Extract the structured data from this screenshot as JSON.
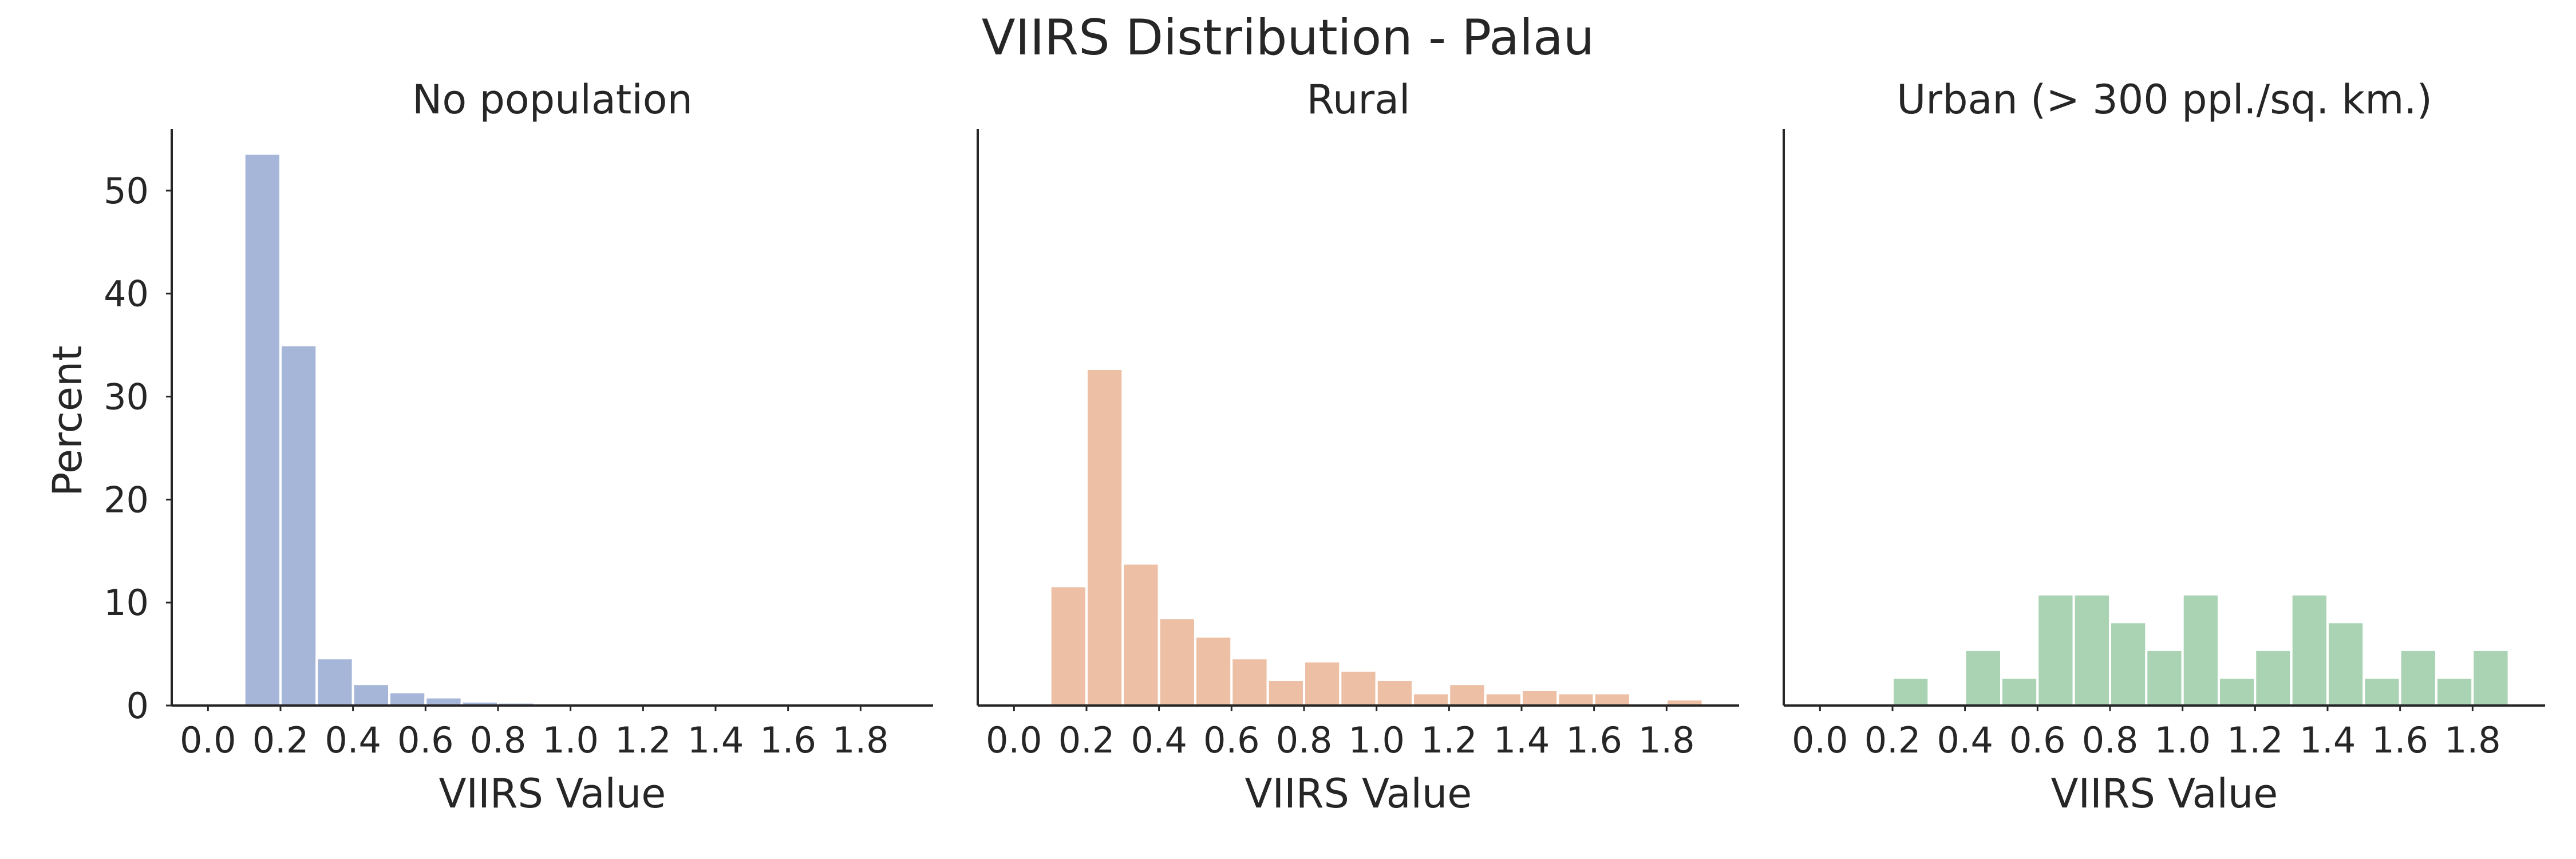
{
  "figure_title": "VIIRS Distribution - Palau",
  "chart_data": [
    {
      "type": "bar",
      "title": "No population",
      "xlabel": "VIIRS Value",
      "ylabel": "Percent",
      "color": "#a5b6d8",
      "bin_width": 0.1,
      "bins": [
        {
          "x0": 0.1,
          "x1": 0.2,
          "value": 53.6
        },
        {
          "x0": 0.2,
          "x1": 0.3,
          "value": 35.0
        },
        {
          "x0": 0.3,
          "x1": 0.4,
          "value": 4.6
        },
        {
          "x0": 0.4,
          "x1": 0.5,
          "value": 2.1
        },
        {
          "x0": 0.5,
          "x1": 0.6,
          "value": 1.3
        },
        {
          "x0": 0.6,
          "x1": 0.7,
          "value": 0.8
        },
        {
          "x0": 0.7,
          "x1": 0.8,
          "value": 0.4
        },
        {
          "x0": 0.8,
          "x1": 0.9,
          "value": 0.3
        },
        {
          "x0": 0.9,
          "x1": 1.0,
          "value": 0.2
        },
        {
          "x0": 1.0,
          "x1": 1.1,
          "value": 0.15
        },
        {
          "x0": 1.1,
          "x1": 1.2,
          "value": 0.1
        },
        {
          "x0": 1.2,
          "x1": 1.3,
          "value": 0.1
        },
        {
          "x0": 1.3,
          "x1": 1.4,
          "value": 0.05
        },
        {
          "x0": 1.4,
          "x1": 1.5,
          "value": 0.1
        },
        {
          "x0": 1.5,
          "x1": 1.6,
          "value": 0.05
        },
        {
          "x0": 1.6,
          "x1": 1.7,
          "value": 0.05
        },
        {
          "x0": 1.7,
          "x1": 1.8,
          "value": 0.05
        },
        {
          "x0": 1.8,
          "x1": 1.9,
          "value": 0.05
        }
      ],
      "xlim": [
        -0.1,
        2.0
      ],
      "ylim": [
        0,
        56
      ],
      "xticks": [
        "0.0",
        "0.2",
        "0.4",
        "0.6",
        "0.8",
        "1.0",
        "1.2",
        "1.4",
        "1.6",
        "1.8"
      ],
      "yticks": [
        "0",
        "10",
        "20",
        "30",
        "40",
        "50"
      ],
      "grid": false,
      "legend": "none"
    },
    {
      "type": "bar",
      "title": "Rural",
      "xlabel": "VIIRS Value",
      "ylabel": "",
      "color": "#edc0a5",
      "bin_width": 0.1,
      "bins": [
        {
          "x0": 0.1,
          "x1": 0.2,
          "value": 11.6
        },
        {
          "x0": 0.2,
          "x1": 0.3,
          "value": 32.7
        },
        {
          "x0": 0.3,
          "x1": 0.4,
          "value": 13.8
        },
        {
          "x0": 0.4,
          "x1": 0.5,
          "value": 8.5
        },
        {
          "x0": 0.5,
          "x1": 0.6,
          "value": 6.7
        },
        {
          "x0": 0.6,
          "x1": 0.7,
          "value": 4.6
        },
        {
          "x0": 0.7,
          "x1": 0.8,
          "value": 2.5
        },
        {
          "x0": 0.8,
          "x1": 0.9,
          "value": 4.3
        },
        {
          "x0": 0.9,
          "x1": 1.0,
          "value": 3.4
        },
        {
          "x0": 1.0,
          "x1": 1.1,
          "value": 2.5
        },
        {
          "x0": 1.1,
          "x1": 1.2,
          "value": 1.2
        },
        {
          "x0": 1.2,
          "x1": 1.3,
          "value": 2.1
        },
        {
          "x0": 1.3,
          "x1": 1.4,
          "value": 1.2
        },
        {
          "x0": 1.4,
          "x1": 1.5,
          "value": 1.5
        },
        {
          "x0": 1.5,
          "x1": 1.6,
          "value": 1.2
        },
        {
          "x0": 1.6,
          "x1": 1.7,
          "value": 1.2
        },
        {
          "x0": 1.7,
          "x1": 1.8,
          "value": 0.0
        },
        {
          "x0": 1.8,
          "x1": 1.9,
          "value": 0.6
        }
      ],
      "xlim": [
        -0.1,
        2.0
      ],
      "ylim": [
        0,
        56
      ],
      "xticks": [
        "0.0",
        "0.2",
        "0.4",
        "0.6",
        "0.8",
        "1.0",
        "1.2",
        "1.4",
        "1.6",
        "1.8"
      ],
      "yticks": [],
      "grid": false,
      "legend": "none"
    },
    {
      "type": "bar",
      "title": "Urban (> 300 ppl./sq. km.)",
      "xlabel": "VIIRS Value",
      "ylabel": "",
      "color": "#a9d3b2",
      "bin_width": 0.1,
      "bins": [
        {
          "x0": 0.1,
          "x1": 0.2,
          "value": 0.0
        },
        {
          "x0": 0.2,
          "x1": 0.3,
          "value": 2.7
        },
        {
          "x0": 0.3,
          "x1": 0.4,
          "value": 0.0
        },
        {
          "x0": 0.4,
          "x1": 0.5,
          "value": 5.4
        },
        {
          "x0": 0.5,
          "x1": 0.6,
          "value": 2.7
        },
        {
          "x0": 0.6,
          "x1": 0.7,
          "value": 10.8
        },
        {
          "x0": 0.7,
          "x1": 0.8,
          "value": 10.8
        },
        {
          "x0": 0.8,
          "x1": 0.9,
          "value": 8.1
        },
        {
          "x0": 0.9,
          "x1": 1.0,
          "value": 5.4
        },
        {
          "x0": 1.0,
          "x1": 1.1,
          "value": 10.8
        },
        {
          "x0": 1.1,
          "x1": 1.2,
          "value": 2.7
        },
        {
          "x0": 1.2,
          "x1": 1.3,
          "value": 5.4
        },
        {
          "x0": 1.3,
          "x1": 1.4,
          "value": 10.8
        },
        {
          "x0": 1.4,
          "x1": 1.5,
          "value": 8.1
        },
        {
          "x0": 1.5,
          "x1": 1.6,
          "value": 2.7
        },
        {
          "x0": 1.6,
          "x1": 1.7,
          "value": 5.4
        },
        {
          "x0": 1.7,
          "x1": 1.8,
          "value": 2.7
        },
        {
          "x0": 1.8,
          "x1": 1.9,
          "value": 5.4
        }
      ],
      "xlim": [
        -0.1,
        2.0
      ],
      "ylim": [
        0,
        56
      ],
      "xticks": [
        "0.0",
        "0.2",
        "0.4",
        "0.6",
        "0.8",
        "1.0",
        "1.2",
        "1.4",
        "1.6",
        "1.8"
      ],
      "yticks": [],
      "grid": false,
      "legend": "none"
    }
  ]
}
